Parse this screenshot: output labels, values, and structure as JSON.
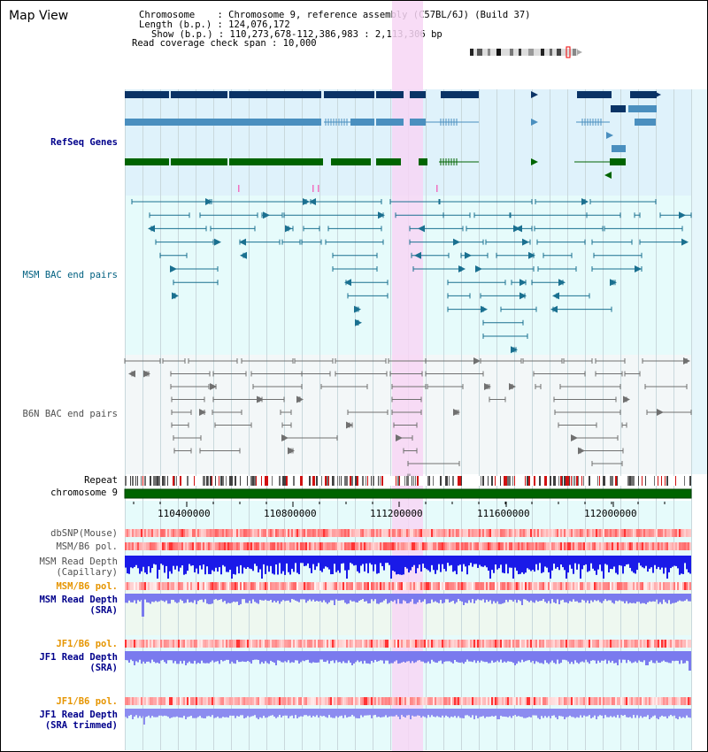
{
  "title": "Map View",
  "info": {
    "chromosome": "Chromosome    : Chromosome 9, reference assembly (C57BL/6J) (Build 37)",
    "length": "Length (b.p.) : 124,076,172",
    "show": "Show (b.p.) : 110,273,678-112,386,983 : 2,113,306 bp",
    "span": "Read coverage check span : 10,000"
  },
  "tracks": {
    "refseq": "RefSeq Genes",
    "msm_bac": "MSM BAC end pairs",
    "b6n_bac": "B6N BAC end pairs",
    "repeat": "Repeat",
    "chromosome": "chromosome 9",
    "dbsnp": "dbSNP(Mouse)",
    "msm_b6_pol_1": "MSM/B6 pol.",
    "msm_depth_cap_1": "MSM Read Depth",
    "msm_depth_cap_2": "(Capillary)",
    "msm_b6_pol_2": "MSM/B6 pol.",
    "msm_depth_sra_1": "MSM Read Depth",
    "msm_depth_sra_2": "(SRA)",
    "jf1_b6_pol_1": "JF1/B6 pol.",
    "jf1_depth_sra_1": "JF1 Read Depth",
    "jf1_depth_sra_2": "(SRA)",
    "jf1_b6_pol_2": "JF1/B6 pol.",
    "jf1_depth_trim_1": "JF1 Read Depth",
    "jf1_depth_trim_2": "(SRA trimmed)"
  },
  "axis": {
    "ticks": [
      "110400000",
      "110800000",
      "111200000",
      "111600000",
      "112000000"
    ]
  },
  "colors": {
    "refseq_bg": "#dff2fb",
    "msm_bg": "#e6fbfb",
    "b6n_bg": "#f3f7f8",
    "highlight": "#f7d6f4",
    "dark_navy": "#0a3366",
    "steel_blue": "#4a8fbf",
    "gene_green": "#006400",
    "msm_line": "#1a7090",
    "b6n_line": "#707070",
    "depth_blue": "#2020e0",
    "depth_light": "#7a7aee"
  }
}
